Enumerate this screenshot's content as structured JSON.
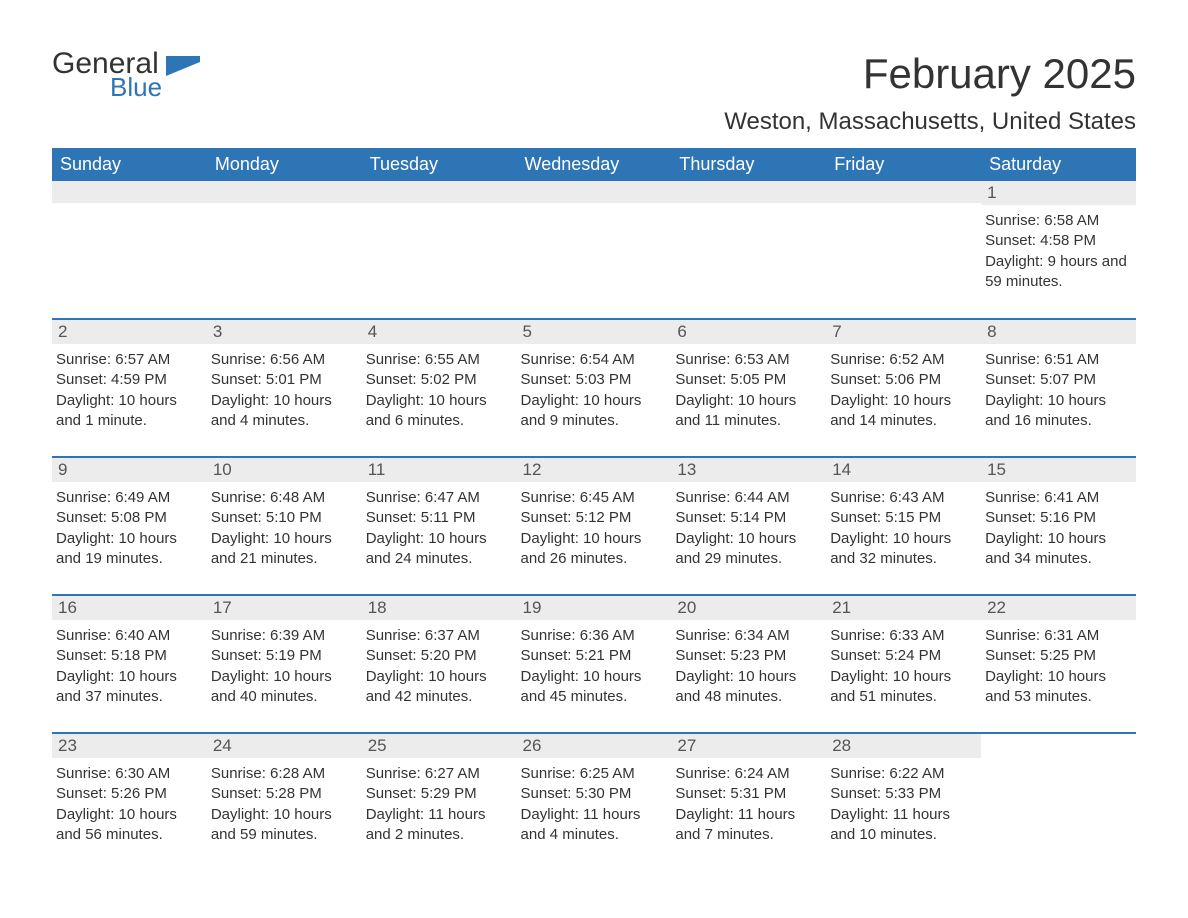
{
  "logo": {
    "general": "General",
    "blue": "Blue",
    "flag_color": "#2e75b6"
  },
  "title": "February 2025",
  "location": "Weston, Massachusetts, United States",
  "colors": {
    "header_bg": "#2e75b6",
    "header_fg": "#ffffff",
    "daynum_bg": "#ececec",
    "week_border": "#2e75b6",
    "text": "#333333"
  },
  "typography": {
    "title_fontsize": 42,
    "location_fontsize": 24,
    "th_fontsize": 18,
    "daynum_fontsize": 17,
    "body_fontsize": 15
  },
  "table": {
    "type": "calendar",
    "columns": [
      "Sunday",
      "Monday",
      "Tuesday",
      "Wednesday",
      "Thursday",
      "Friday",
      "Saturday"
    ],
    "weeks": [
      [
        null,
        null,
        null,
        null,
        null,
        null,
        {
          "day": "1",
          "sunrise": "Sunrise: 6:58 AM",
          "sunset": "Sunset: 4:58 PM",
          "daylight": "Daylight: 9 hours and 59 minutes."
        }
      ],
      [
        {
          "day": "2",
          "sunrise": "Sunrise: 6:57 AM",
          "sunset": "Sunset: 4:59 PM",
          "daylight": "Daylight: 10 hours and 1 minute."
        },
        {
          "day": "3",
          "sunrise": "Sunrise: 6:56 AM",
          "sunset": "Sunset: 5:01 PM",
          "daylight": "Daylight: 10 hours and 4 minutes."
        },
        {
          "day": "4",
          "sunrise": "Sunrise: 6:55 AM",
          "sunset": "Sunset: 5:02 PM",
          "daylight": "Daylight: 10 hours and 6 minutes."
        },
        {
          "day": "5",
          "sunrise": "Sunrise: 6:54 AM",
          "sunset": "Sunset: 5:03 PM",
          "daylight": "Daylight: 10 hours and 9 minutes."
        },
        {
          "day": "6",
          "sunrise": "Sunrise: 6:53 AM",
          "sunset": "Sunset: 5:05 PM",
          "daylight": "Daylight: 10 hours and 11 minutes."
        },
        {
          "day": "7",
          "sunrise": "Sunrise: 6:52 AM",
          "sunset": "Sunset: 5:06 PM",
          "daylight": "Daylight: 10 hours and 14 minutes."
        },
        {
          "day": "8",
          "sunrise": "Sunrise: 6:51 AM",
          "sunset": "Sunset: 5:07 PM",
          "daylight": "Daylight: 10 hours and 16 minutes."
        }
      ],
      [
        {
          "day": "9",
          "sunrise": "Sunrise: 6:49 AM",
          "sunset": "Sunset: 5:08 PM",
          "daylight": "Daylight: 10 hours and 19 minutes."
        },
        {
          "day": "10",
          "sunrise": "Sunrise: 6:48 AM",
          "sunset": "Sunset: 5:10 PM",
          "daylight": "Daylight: 10 hours and 21 minutes."
        },
        {
          "day": "11",
          "sunrise": "Sunrise: 6:47 AM",
          "sunset": "Sunset: 5:11 PM",
          "daylight": "Daylight: 10 hours and 24 minutes."
        },
        {
          "day": "12",
          "sunrise": "Sunrise: 6:45 AM",
          "sunset": "Sunset: 5:12 PM",
          "daylight": "Daylight: 10 hours and 26 minutes."
        },
        {
          "day": "13",
          "sunrise": "Sunrise: 6:44 AM",
          "sunset": "Sunset: 5:14 PM",
          "daylight": "Daylight: 10 hours and 29 minutes."
        },
        {
          "day": "14",
          "sunrise": "Sunrise: 6:43 AM",
          "sunset": "Sunset: 5:15 PM",
          "daylight": "Daylight: 10 hours and 32 minutes."
        },
        {
          "day": "15",
          "sunrise": "Sunrise: 6:41 AM",
          "sunset": "Sunset: 5:16 PM",
          "daylight": "Daylight: 10 hours and 34 minutes."
        }
      ],
      [
        {
          "day": "16",
          "sunrise": "Sunrise: 6:40 AM",
          "sunset": "Sunset: 5:18 PM",
          "daylight": "Daylight: 10 hours and 37 minutes."
        },
        {
          "day": "17",
          "sunrise": "Sunrise: 6:39 AM",
          "sunset": "Sunset: 5:19 PM",
          "daylight": "Daylight: 10 hours and 40 minutes."
        },
        {
          "day": "18",
          "sunrise": "Sunrise: 6:37 AM",
          "sunset": "Sunset: 5:20 PM",
          "daylight": "Daylight: 10 hours and 42 minutes."
        },
        {
          "day": "19",
          "sunrise": "Sunrise: 6:36 AM",
          "sunset": "Sunset: 5:21 PM",
          "daylight": "Daylight: 10 hours and 45 minutes."
        },
        {
          "day": "20",
          "sunrise": "Sunrise: 6:34 AM",
          "sunset": "Sunset: 5:23 PM",
          "daylight": "Daylight: 10 hours and 48 minutes."
        },
        {
          "day": "21",
          "sunrise": "Sunrise: 6:33 AM",
          "sunset": "Sunset: 5:24 PM",
          "daylight": "Daylight: 10 hours and 51 minutes."
        },
        {
          "day": "22",
          "sunrise": "Sunrise: 6:31 AM",
          "sunset": "Sunset: 5:25 PM",
          "daylight": "Daylight: 10 hours and 53 minutes."
        }
      ],
      [
        {
          "day": "23",
          "sunrise": "Sunrise: 6:30 AM",
          "sunset": "Sunset: 5:26 PM",
          "daylight": "Daylight: 10 hours and 56 minutes."
        },
        {
          "day": "24",
          "sunrise": "Sunrise: 6:28 AM",
          "sunset": "Sunset: 5:28 PM",
          "daylight": "Daylight: 10 hours and 59 minutes."
        },
        {
          "day": "25",
          "sunrise": "Sunrise: 6:27 AM",
          "sunset": "Sunset: 5:29 PM",
          "daylight": "Daylight: 11 hours and 2 minutes."
        },
        {
          "day": "26",
          "sunrise": "Sunrise: 6:25 AM",
          "sunset": "Sunset: 5:30 PM",
          "daylight": "Daylight: 11 hours and 4 minutes."
        },
        {
          "day": "27",
          "sunrise": "Sunrise: 6:24 AM",
          "sunset": "Sunset: 5:31 PM",
          "daylight": "Daylight: 11 hours and 7 minutes."
        },
        {
          "day": "28",
          "sunrise": "Sunrise: 6:22 AM",
          "sunset": "Sunset: 5:33 PM",
          "daylight": "Daylight: 11 hours and 10 minutes."
        },
        null
      ]
    ]
  }
}
